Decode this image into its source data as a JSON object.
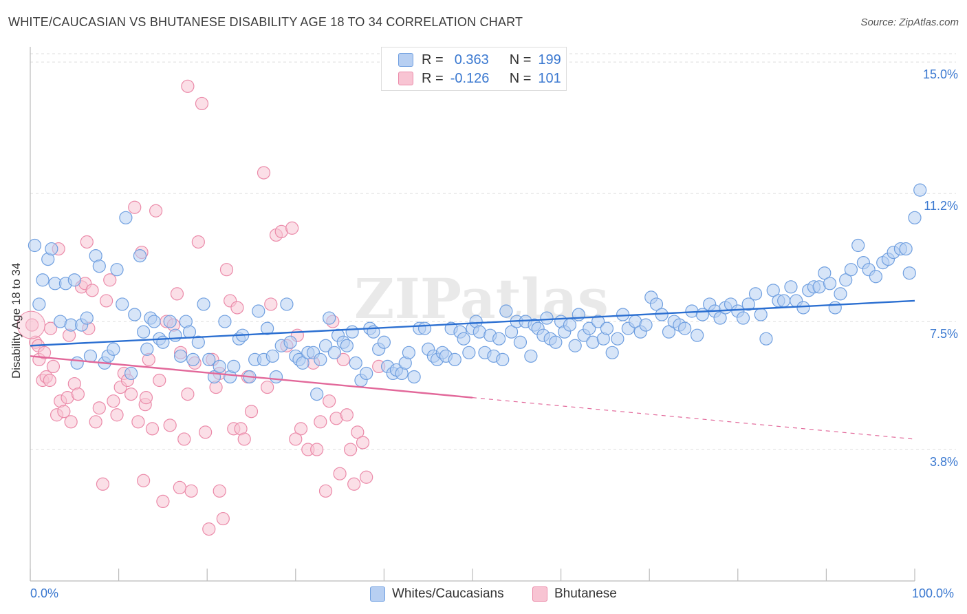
{
  "title": "WHITE/CAUCASIAN VS BHUTANESE DISABILITY AGE 18 TO 34 CORRELATION CHART",
  "source": "Source: ZipAtlas.com",
  "watermark": "ZIPatlas",
  "legend": {
    "r_label": "R =",
    "n_label": "N =",
    "entries": [
      {
        "r": "0.363",
        "n": "199"
      },
      {
        "r": "-0.126",
        "n": "101"
      }
    ]
  },
  "colors": {
    "blue_fill": "#b7cff2",
    "blue_stroke": "#6f9fe0",
    "blue_line": "#2b6fd1",
    "pink_fill": "#f8c4d3",
    "pink_stroke": "#eb8aa9",
    "pink_line": "#e2689a",
    "tick_text": "#3a78d0",
    "grid": "#dddddd"
  },
  "chart_data": {
    "type": "scatter",
    "xlabel": "",
    "ylabel": "Disability Age 18 to 34",
    "xlim": [
      0,
      100
    ],
    "ylim": [
      0,
      15.6
    ],
    "x_tick_labels": [
      "0.0%",
      "100.0%"
    ],
    "y_ticks": [
      3.8,
      7.5,
      11.2,
      15.0
    ],
    "y_tick_labels": [
      "3.8%",
      "7.5%",
      "11.2%",
      "15.0%"
    ],
    "grid": true,
    "legend_position": "top-center",
    "series": [
      {
        "name": "Whites/Caucasians",
        "color": "#6f9fe0",
        "r": 0.363,
        "n": 199,
        "trend": {
          "x": [
            0,
            100
          ],
          "y": [
            6.8,
            8.1
          ]
        },
        "points": [
          [
            0.5,
            9.7
          ],
          [
            1,
            8.0
          ],
          [
            1.4,
            8.7
          ],
          [
            2,
            9.3
          ],
          [
            2.4,
            9.6
          ],
          [
            2.8,
            8.6
          ],
          [
            3.4,
            7.5
          ],
          [
            4,
            8.6
          ],
          [
            4.6,
            7.4
          ],
          [
            5,
            8.7
          ],
          [
            5.3,
            6.3
          ],
          [
            5.8,
            7.4
          ],
          [
            6.4,
            7.6
          ],
          [
            6.8,
            6.5
          ],
          [
            7.4,
            9.4
          ],
          [
            7.8,
            9.1
          ],
          [
            8.4,
            6.3
          ],
          [
            8.8,
            6.5
          ],
          [
            9.4,
            6.7
          ],
          [
            9.8,
            9.0
          ],
          [
            10.4,
            8.0
          ],
          [
            10.8,
            10.5
          ],
          [
            11.4,
            6.0
          ],
          [
            11.8,
            7.7
          ],
          [
            12.4,
            9.4
          ],
          [
            12.8,
            7.2
          ],
          [
            13.2,
            6.7
          ],
          [
            13.6,
            7.6
          ],
          [
            14,
            7.5
          ],
          [
            14.6,
            7.0
          ],
          [
            15,
            6.9
          ],
          [
            15.8,
            7.5
          ],
          [
            16.4,
            7.1
          ],
          [
            17,
            6.5
          ],
          [
            17.6,
            7.5
          ],
          [
            18,
            7.2
          ],
          [
            18.4,
            6.4
          ],
          [
            19,
            6.9
          ],
          [
            19.6,
            8.0
          ],
          [
            20.2,
            6.4
          ],
          [
            20.8,
            5.9
          ],
          [
            21.4,
            6.2
          ],
          [
            22,
            7.5
          ],
          [
            22.6,
            5.9
          ],
          [
            23,
            6.2
          ],
          [
            23.6,
            7.0
          ],
          [
            24,
            7.1
          ],
          [
            24.8,
            5.9
          ],
          [
            25.4,
            6.4
          ],
          [
            25.8,
            7.8
          ],
          [
            26.4,
            6.4
          ],
          [
            26.8,
            7.3
          ],
          [
            27.4,
            6.5
          ],
          [
            27.8,
            5.9
          ],
          [
            28.4,
            6.8
          ],
          [
            29,
            8.0
          ],
          [
            29.4,
            6.9
          ],
          [
            30,
            6.5
          ],
          [
            30.4,
            6.4
          ],
          [
            30.8,
            6.3
          ],
          [
            31.4,
            6.6
          ],
          [
            32,
            6.6
          ],
          [
            32.4,
            5.4
          ],
          [
            32.8,
            6.4
          ],
          [
            33.4,
            6.8
          ],
          [
            33.8,
            7.6
          ],
          [
            34.4,
            6.6
          ],
          [
            34.8,
            7.1
          ],
          [
            35.4,
            6.9
          ],
          [
            35.8,
            6.8
          ],
          [
            36.4,
            7.2
          ],
          [
            36.8,
            6.3
          ],
          [
            37.4,
            5.8
          ],
          [
            38,
            6.0
          ],
          [
            38.4,
            7.3
          ],
          [
            38.8,
            7.2
          ],
          [
            39.4,
            6.7
          ],
          [
            40,
            6.9
          ],
          [
            40.4,
            6.2
          ],
          [
            41,
            6.0
          ],
          [
            41.4,
            6.1
          ],
          [
            42,
            6.0
          ],
          [
            42.4,
            6.3
          ],
          [
            42.8,
            6.6
          ],
          [
            43.4,
            5.9
          ],
          [
            44,
            7.3
          ],
          [
            44.6,
            7.3
          ],
          [
            45,
            6.7
          ],
          [
            45.6,
            6.5
          ],
          [
            46,
            6.4
          ],
          [
            46.6,
            6.6
          ],
          [
            47,
            6.5
          ],
          [
            47.6,
            7.3
          ],
          [
            48,
            6.4
          ],
          [
            48.6,
            7.2
          ],
          [
            49,
            7.0
          ],
          [
            49.6,
            6.6
          ],
          [
            50,
            7.3
          ],
          [
            50.4,
            7.5
          ],
          [
            50.8,
            7.2
          ],
          [
            51.4,
            6.6
          ],
          [
            52,
            7.1
          ],
          [
            52.4,
            6.5
          ],
          [
            53,
            7.0
          ],
          [
            53.4,
            6.4
          ],
          [
            53.8,
            7.8
          ],
          [
            54.4,
            7.2
          ],
          [
            55,
            7.5
          ],
          [
            55.4,
            6.9
          ],
          [
            56,
            7.5
          ],
          [
            56.6,
            6.5
          ],
          [
            57,
            7.4
          ],
          [
            57.4,
            7.3
          ],
          [
            58,
            7.1
          ],
          [
            58.4,
            7.6
          ],
          [
            58.8,
            7.0
          ],
          [
            59.4,
            6.9
          ],
          [
            60,
            7.5
          ],
          [
            60.4,
            7.2
          ],
          [
            61,
            7.4
          ],
          [
            61.6,
            6.8
          ],
          [
            62,
            7.7
          ],
          [
            62.6,
            7.1
          ],
          [
            63.2,
            7.3
          ],
          [
            63.6,
            6.9
          ],
          [
            64.2,
            7.5
          ],
          [
            64.8,
            7.0
          ],
          [
            65.2,
            7.3
          ],
          [
            65.8,
            6.6
          ],
          [
            66.4,
            7.0
          ],
          [
            67,
            7.7
          ],
          [
            67.6,
            7.3
          ],
          [
            68.4,
            7.5
          ],
          [
            69,
            7.2
          ],
          [
            69.6,
            7.4
          ],
          [
            70.2,
            8.2
          ],
          [
            70.8,
            8.0
          ],
          [
            71.4,
            7.7
          ],
          [
            72.2,
            7.2
          ],
          [
            72.8,
            7.5
          ],
          [
            73.4,
            7.4
          ],
          [
            74,
            7.3
          ],
          [
            74.8,
            7.8
          ],
          [
            75.4,
            7.1
          ],
          [
            76,
            7.7
          ],
          [
            76.8,
            8.0
          ],
          [
            77.4,
            7.8
          ],
          [
            78,
            7.6
          ],
          [
            78.6,
            7.9
          ],
          [
            79.2,
            8.0
          ],
          [
            80,
            7.8
          ],
          [
            80.6,
            7.6
          ],
          [
            81.2,
            8.0
          ],
          [
            82,
            8.3
          ],
          [
            82.6,
            7.7
          ],
          [
            83.2,
            7.0
          ],
          [
            84,
            8.4
          ],
          [
            84.6,
            8.1
          ],
          [
            85.2,
            8.1
          ],
          [
            86,
            8.5
          ],
          [
            86.6,
            8.1
          ],
          [
            87.4,
            7.9
          ],
          [
            88,
            8.4
          ],
          [
            88.6,
            8.5
          ],
          [
            89.2,
            8.5
          ],
          [
            89.8,
            8.9
          ],
          [
            90.4,
            8.6
          ],
          [
            91,
            7.9
          ],
          [
            91.6,
            8.3
          ],
          [
            92.2,
            8.7
          ],
          [
            92.8,
            9.0
          ],
          [
            93.6,
            9.7
          ],
          [
            94.2,
            9.2
          ],
          [
            94.8,
            9.0
          ],
          [
            95.6,
            8.8
          ],
          [
            96.4,
            9.2
          ],
          [
            97,
            9.3
          ],
          [
            97.6,
            9.5
          ],
          [
            98.4,
            9.6
          ],
          [
            99.0,
            9.6
          ],
          [
            99.4,
            8.9
          ],
          [
            100,
            10.5
          ],
          [
            100.6,
            11.3
          ]
        ]
      },
      {
        "name": "Bhutanese",
        "color": "#eb8aa9",
        "r": -0.126,
        "n": 101,
        "trend": {
          "x": [
            0,
            50,
            100
          ],
          "y": [
            6.5,
            5.3,
            4.1
          ]
        },
        "points": [
          [
            0.2,
            7.4
          ],
          [
            0.6,
            6.9
          ],
          [
            1,
            6.4
          ],
          [
            1.4,
            5.8
          ],
          [
            1.8,
            5.9
          ],
          [
            2.2,
            5.8
          ],
          [
            2.6,
            6.2
          ],
          [
            3,
            4.8
          ],
          [
            3.4,
            5.2
          ],
          [
            3.8,
            4.9
          ],
          [
            4.2,
            5.3
          ],
          [
            4.6,
            4.6
          ],
          [
            5,
            5.7
          ],
          [
            5.4,
            5.4
          ],
          [
            5.8,
            8.5
          ],
          [
            6.2,
            8.6
          ],
          [
            6.6,
            7.3
          ],
          [
            7,
            8.4
          ],
          [
            7.4,
            4.6
          ],
          [
            7.8,
            5.0
          ],
          [
            8.2,
            2.8
          ],
          [
            8.6,
            8.1
          ],
          [
            9,
            8.7
          ],
          [
            9.4,
            5.2
          ],
          [
            9.8,
            4.8
          ],
          [
            10.2,
            5.6
          ],
          [
            10.6,
            6.0
          ],
          [
            11,
            5.8
          ],
          [
            11.4,
            5.4
          ],
          [
            11.8,
            10.8
          ],
          [
            12.2,
            4.6
          ],
          [
            12.6,
            9.5
          ],
          [
            13,
            5.1
          ],
          [
            13.4,
            6.4
          ],
          [
            13.8,
            4.4
          ],
          [
            14.2,
            10.7
          ],
          [
            14.6,
            5.8
          ],
          [
            15,
            2.3
          ],
          [
            15.4,
            7.5
          ],
          [
            15.8,
            4.5
          ],
          [
            16.2,
            7.4
          ],
          [
            16.6,
            8.3
          ],
          [
            17,
            6.6
          ],
          [
            17.4,
            4.1
          ],
          [
            17.8,
            5.4
          ],
          [
            18.2,
            2.6
          ],
          [
            18.6,
            6.3
          ],
          [
            19,
            9.8
          ],
          [
            19.4,
            13.8
          ],
          [
            19.8,
            4.3
          ],
          [
            20.2,
            1.5
          ],
          [
            20.6,
            6.4
          ],
          [
            21,
            5.6
          ],
          [
            21.4,
            2.6
          ],
          [
            21.8,
            1.8
          ],
          [
            22.2,
            9.0
          ],
          [
            22.6,
            8.1
          ],
          [
            23,
            4.4
          ],
          [
            23.4,
            7.9
          ],
          [
            23.8,
            4.4
          ],
          [
            24.2,
            4.1
          ],
          [
            24.6,
            5.9
          ],
          [
            25,
            4.9
          ],
          [
            26.4,
            11.8
          ],
          [
            26.8,
            5.6
          ],
          [
            27.2,
            8.0
          ],
          [
            27.8,
            10.0
          ],
          [
            28.4,
            10.1
          ],
          [
            29,
            6.8
          ],
          [
            29.6,
            10.2
          ],
          [
            30.2,
            7.1
          ],
          [
            30.6,
            4.4
          ],
          [
            31.4,
            3.8
          ],
          [
            32,
            6.3
          ],
          [
            32.4,
            3.8
          ],
          [
            32.8,
            4.6
          ],
          [
            33.4,
            2.6
          ],
          [
            33.8,
            5.2
          ],
          [
            34.2,
            7.5
          ],
          [
            34.6,
            4.7
          ],
          [
            35,
            3.1
          ],
          [
            35.4,
            6.4
          ],
          [
            35.8,
            4.8
          ],
          [
            36.2,
            3.8
          ],
          [
            36.6,
            2.8
          ],
          [
            37,
            4.3
          ],
          [
            37.6,
            4.0
          ],
          [
            38,
            3.0
          ],
          [
            6.4,
            9.8
          ],
          [
            3.2,
            9.6
          ],
          [
            17.8,
            14.3
          ],
          [
            21.4,
            6.0
          ],
          [
            12.8,
            2.9
          ],
          [
            16.9,
            2.7
          ],
          [
            13.1,
            5.3
          ],
          [
            30.0,
            4.1
          ],
          [
            39.4,
            6.2
          ],
          [
            4.4,
            7.1
          ],
          [
            2.3,
            7.3
          ],
          [
            0.9,
            6.8
          ],
          [
            1.6,
            6.6
          ]
        ]
      }
    ]
  },
  "bottom_legend": [
    {
      "label": "Whites/Caucasians"
    },
    {
      "label": "Bhutanese"
    }
  ]
}
